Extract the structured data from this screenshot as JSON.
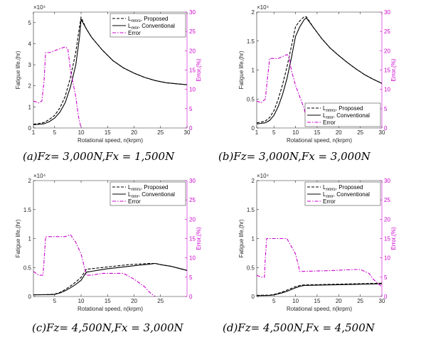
{
  "colors": {
    "error": "#cc00cc",
    "axis": "#262626",
    "proposed": "#000000",
    "conventional": "#000000"
  },
  "chart_data": [
    {
      "type": "line",
      "caption": "(a)Fz= 3,000N,Fx = 1,500N",
      "xlabel": "Rotational speed, n(krpm)",
      "ylabel": "Fatigue life,(hr)",
      "ylabel2": "Error,(%)",
      "exponent": "×10⁴",
      "xlim": [
        1,
        30
      ],
      "ylim": [
        0,
        55000
      ],
      "y2lim": [
        0,
        30
      ],
      "xticks": [
        1,
        5,
        10,
        15,
        20,
        25,
        30
      ],
      "yticks": [
        0,
        10000,
        20000,
        30000,
        40000,
        50000
      ],
      "yticklabels": [
        "0",
        "1",
        "2",
        "3",
        "4",
        "5"
      ],
      "y2ticks": [
        0,
        5,
        10,
        15,
        20,
        25,
        30
      ],
      "legend": {
        "position": "top-right",
        "entries": [
          {
            "label": "L_nmrs, Proposed",
            "main": "L",
            "sub": "nmrs",
            "rest": ", Proposed"
          },
          {
            "label": "L_nmr, Conventional",
            "main": "L",
            "sub": "nmr",
            "rest": ", Conventional"
          },
          {
            "label": "Error",
            "main": "Error",
            "sub": "",
            "rest": ""
          }
        ]
      },
      "series": [
        {
          "name": "L_nmrs, Proposed",
          "style": "dashed",
          "axis": "left",
          "x": [
            1,
            2,
            3,
            4,
            5,
            6,
            7,
            8,
            9,
            9.7,
            10,
            11,
            12,
            14,
            16,
            18,
            20,
            22,
            24,
            26,
            28,
            30
          ],
          "y": [
            1800,
            2100,
            2600,
            4000,
            6000,
            9500,
            15000,
            24000,
            36000,
            48000,
            52500,
            47000,
            43000,
            37000,
            32000,
            28500,
            26000,
            24000,
            22500,
            21500,
            21000,
            20500
          ]
        },
        {
          "name": "L_nmr, Conventional",
          "style": "solid",
          "axis": "left",
          "x": [
            1,
            2,
            3,
            4,
            5,
            6,
            7,
            8,
            9,
            9.7,
            10,
            11,
            12,
            14,
            16,
            18,
            20,
            22,
            24,
            26,
            28,
            30
          ],
          "y": [
            1600,
            1700,
            2000,
            3000,
            4700,
            7500,
            12000,
            19500,
            30000,
            43000,
            51500,
            47000,
            43000,
            37000,
            32000,
            28500,
            26000,
            24000,
            22500,
            21500,
            21000,
            20500
          ]
        },
        {
          "name": "Error",
          "style": "dashdot",
          "axis": "right",
          "x": [
            1,
            2,
            2.6,
            3,
            3.3,
            4,
            5,
            6,
            7,
            7.5,
            8,
            9,
            9.5,
            10
          ],
          "y": [
            7,
            6.5,
            7,
            12,
            19.5,
            19.5,
            20,
            20.5,
            21,
            20.5,
            15,
            8,
            3,
            0
          ]
        }
      ]
    },
    {
      "type": "line",
      "caption": "(b)Fz= 3,000N,Fx = 3,000N",
      "xlabel": "Rotational speed, n(krpm)",
      "ylabel": "Fatigue life,(hr)",
      "ylabel2": "Error,(%)",
      "exponent": "×10⁴",
      "xlim": [
        1,
        30
      ],
      "ylim": [
        0,
        20000
      ],
      "y2lim": [
        0,
        30
      ],
      "xticks": [
        1,
        5,
        10,
        15,
        20,
        25,
        30
      ],
      "yticks": [
        0,
        5000,
        10000,
        15000,
        20000
      ],
      "yticklabels": [
        "0",
        "0.5",
        "1",
        "1.5",
        "2"
      ],
      "y2ticks": [
        0,
        5,
        10,
        15,
        20,
        25,
        30
      ],
      "legend": {
        "position": "bottom-right",
        "entries": [
          {
            "label": "L_nmrs, Proposed",
            "main": "L",
            "sub": "nmrs",
            "rest": ", Proposed"
          },
          {
            "label": "L_nmr, Conventional",
            "main": "L",
            "sub": "nmr",
            "rest": ", Conventional"
          },
          {
            "label": "Error",
            "main": "Error",
            "sub": "",
            "rest": ""
          }
        ]
      },
      "series": [
        {
          "name": "L_nmrs, Proposed",
          "style": "dashed",
          "axis": "left",
          "x": [
            1,
            2,
            3,
            4,
            5,
            6,
            7,
            8,
            9,
            10,
            11,
            12,
            12.5,
            14,
            16,
            18,
            20,
            22,
            24,
            26,
            28,
            30
          ],
          "y": [
            900,
            1000,
            1200,
            1800,
            3000,
            5000,
            7500,
            10500,
            14000,
            17500,
            18500,
            19200,
            19200,
            17500,
            15500,
            13800,
            12500,
            11300,
            10200,
            9200,
            8400,
            7700
          ]
        },
        {
          "name": "L_nmr, Conventional",
          "style": "solid",
          "axis": "left",
          "x": [
            1,
            2,
            3,
            4,
            5,
            6,
            7,
            8,
            9,
            10,
            11,
            12,
            12.5,
            14,
            16,
            18,
            20,
            22,
            24,
            26,
            28,
            30
          ],
          "y": [
            700,
            800,
            900,
            1300,
            2200,
            3700,
            5800,
            8500,
            12000,
            15800,
            17500,
            18700,
            19000,
            17500,
            15500,
            13800,
            12500,
            11300,
            10200,
            9200,
            8400,
            7700
          ]
        },
        {
          "name": "Error",
          "style": "dashdot",
          "axis": "right",
          "x": [
            1,
            2,
            3,
            3.5,
            4,
            5,
            6,
            7,
            8,
            8.5,
            9,
            10,
            11,
            12,
            12.5
          ],
          "y": [
            7,
            6.5,
            7.5,
            13,
            18,
            18,
            18,
            18.5,
            19,
            18.5,
            15,
            11,
            8,
            5,
            2
          ]
        }
      ]
    },
    {
      "type": "line",
      "caption": "(c)Fz= 4,500N,Fx = 3,000N",
      "xlabel": "Rotational speed, n(krpm)",
      "ylabel": "Fatigue life,(hr)",
      "ylabel2": "Error,(%)",
      "exponent": "×10⁴",
      "xlim": [
        1,
        30
      ],
      "ylim": [
        0,
        20000
      ],
      "y2lim": [
        0,
        30
      ],
      "xticks": [
        5,
        10,
        15,
        20,
        25
      ],
      "yticks": [
        0,
        5000,
        10000,
        15000,
        20000
      ],
      "yticklabels": [
        "0",
        "0.5",
        "1",
        "1.5",
        "2"
      ],
      "y2ticks": [
        0,
        5,
        10,
        15,
        20,
        25,
        30
      ],
      "legend": {
        "position": "top-right",
        "entries": [
          {
            "label": "L_nmrs, Proposed",
            "main": "L",
            "sub": "nmrs",
            "rest": ", Proposed"
          },
          {
            "label": "L_nmr, Conventional",
            "main": "L",
            "sub": "nmr",
            "rest": ", Conventional"
          },
          {
            "label": "Error",
            "main": "Error",
            "sub": "",
            "rest": ""
          }
        ]
      },
      "series": [
        {
          "name": "L_nmrs, Proposed",
          "style": "dashed",
          "axis": "left",
          "x": [
            1,
            3,
            4,
            5,
            6,
            7,
            8,
            9,
            10,
            11,
            13,
            15,
            17,
            19,
            21,
            23,
            24,
            25,
            27,
            30
          ],
          "y": [
            300,
            320,
            350,
            400,
            700,
            1200,
            1800,
            2500,
            3300,
            4700,
            4900,
            5100,
            5300,
            5500,
            5600,
            5700,
            5700,
            5500,
            5200,
            4500
          ]
        },
        {
          "name": "L_nmr, Conventional",
          "style": "solid",
          "axis": "left",
          "x": [
            1,
            3,
            4,
            5,
            6,
            7,
            8,
            9,
            10,
            11,
            13,
            15,
            17,
            19,
            21,
            23,
            24,
            25,
            27,
            30
          ],
          "y": [
            300,
            310,
            320,
            350,
            600,
            1000,
            1500,
            2100,
            2800,
            4200,
            4500,
            4800,
            5000,
            5200,
            5400,
            5600,
            5700,
            5500,
            5200,
            4500
          ]
        },
        {
          "name": "Error",
          "style": "dashdot",
          "axis": "right",
          "x": [
            1,
            2,
            2.8,
            3,
            3.3,
            4,
            5,
            6,
            7,
            8,
            9,
            10,
            11,
            12,
            14,
            16,
            18,
            20,
            22,
            23,
            24
          ],
          "y": [
            6.5,
            5.5,
            5.5,
            9,
            15.5,
            15.5,
            15.5,
            15.5,
            15.5,
            16,
            14,
            11,
            5.5,
            5.5,
            6,
            6,
            6,
            4.5,
            2.5,
            1,
            0
          ]
        }
      ]
    },
    {
      "type": "line",
      "caption": "(d)Fz= 4,500N,Fx = 4,500N",
      "xlabel": "Rotational speed, n(krpm)",
      "ylabel": "Fatigue life,(hr)",
      "ylabel2": "Error,(%)",
      "exponent": "×10⁴",
      "xlim": [
        1,
        30
      ],
      "ylim": [
        0,
        20000
      ],
      "y2lim": [
        0,
        30
      ],
      "xticks": [
        5,
        10,
        15,
        20,
        25,
        30
      ],
      "yticks": [
        0,
        5000,
        10000,
        15000,
        20000
      ],
      "yticklabels": [
        "0",
        "0.5",
        "1",
        "1.5",
        "2"
      ],
      "y2ticks": [
        0,
        5,
        10,
        15,
        20,
        25,
        30
      ],
      "legend": {
        "position": "top-right",
        "entries": [
          {
            "label": "L_nmrs, Proposed",
            "main": "L",
            "sub": "nmrs",
            "rest": ", Proposed"
          },
          {
            "label": "L_nmr, Conventional",
            "main": "L",
            "sub": "nmr",
            "rest": ", Conventional"
          },
          {
            "label": "Error",
            "main": "Error",
            "sub": "",
            "rest": ""
          }
        ]
      },
      "series": [
        {
          "name": "L_nmrs, Proposed",
          "style": "dashed",
          "axis": "left",
          "x": [
            1,
            2,
            3,
            4,
            5,
            6,
            7,
            8,
            9,
            10,
            11,
            12,
            15,
            18,
            21,
            24,
            27,
            30
          ],
          "y": [
            200,
            210,
            220,
            230,
            350,
            550,
            800,
            1100,
            1400,
            1700,
            1900,
            2000,
            2050,
            2100,
            2150,
            2200,
            2250,
            2300
          ]
        },
        {
          "name": "L_nmr, Conventional",
          "style": "solid",
          "axis": "left",
          "x": [
            1,
            2,
            3,
            4,
            5,
            6,
            7,
            8,
            9,
            10,
            11,
            12,
            15,
            18,
            21,
            24,
            27,
            30
          ],
          "y": [
            150,
            160,
            170,
            180,
            280,
            450,
            650,
            900,
            1200,
            1500,
            1750,
            1900,
            1950,
            2000,
            2050,
            2100,
            2150,
            2200
          ]
        },
        {
          "name": "Error",
          "style": "dashdot",
          "axis": "right",
          "x": [
            1,
            2,
            2.8,
            3,
            3.3,
            4,
            5,
            6,
            7,
            8,
            9,
            10,
            11,
            12,
            15,
            18,
            20,
            22,
            24,
            25,
            27,
            28,
            30
          ],
          "y": [
            5.5,
            5,
            5,
            10,
            15,
            15,
            15,
            15,
            15,
            15,
            13,
            11,
            6.5,
            6.5,
            6.6,
            6.7,
            6.8,
            6.9,
            7,
            7,
            6,
            4.5,
            2.5
          ]
        }
      ]
    }
  ]
}
